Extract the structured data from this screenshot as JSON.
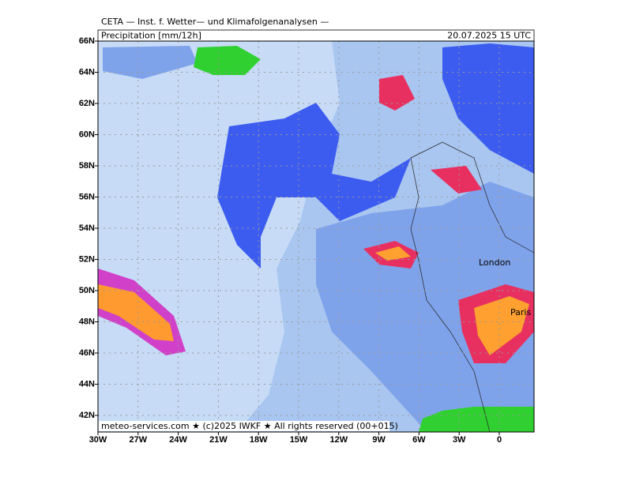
{
  "header": {
    "institute": "CETA — Inst. f. Wetter— und Klimafolgenanalysen —",
    "title": "Precipitation [mm/12h]",
    "valid_time": "20.07.2025 15 UTC"
  },
  "map": {
    "lat_labels": [
      "66N",
      "64N",
      "62N",
      "60N",
      "58N",
      "56N",
      "54N",
      "52N",
      "50N",
      "48N",
      "46N",
      "44N",
      "42N"
    ],
    "lon_labels": [
      "30W",
      "27W",
      "24W",
      "21W",
      "18W",
      "15W",
      "12W",
      "9W",
      "6W",
      "3W",
      "0"
    ],
    "places": [
      "London",
      "Paris"
    ],
    "credits": "meteo-services.com ★ (c)2025 IWKF ★ All rights reserved (00+015)"
  }
}
